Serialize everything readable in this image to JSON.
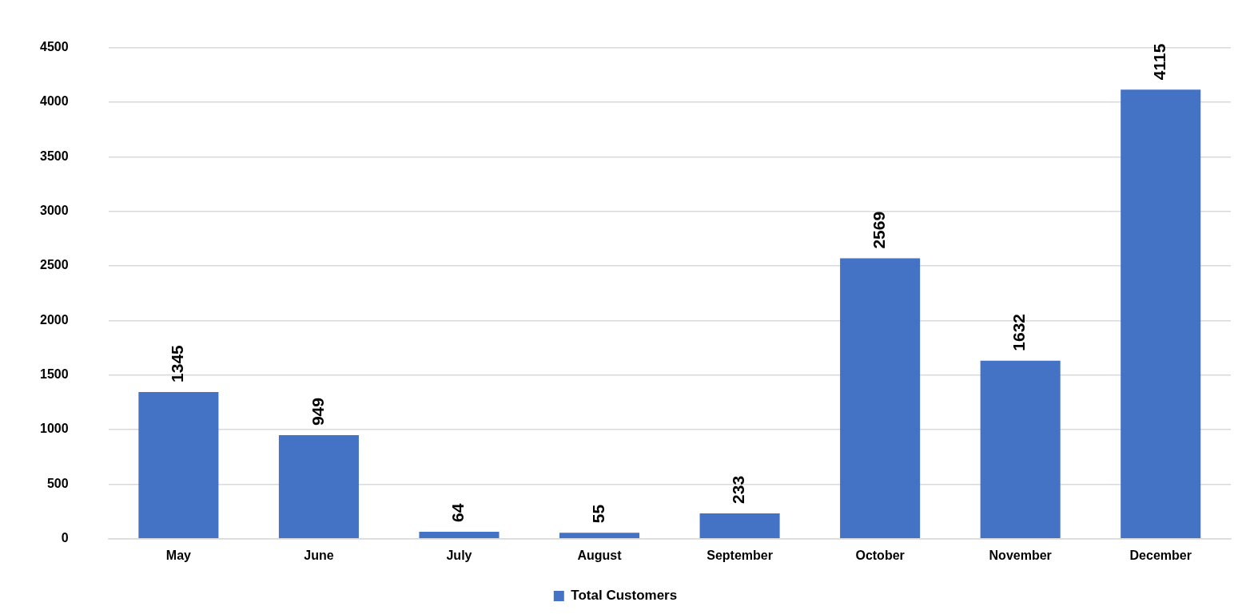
{
  "chart_data": {
    "type": "bar",
    "categories": [
      "May",
      "June",
      "July",
      "August",
      "September",
      "October",
      "November",
      "December"
    ],
    "series": [
      {
        "name": "Total Customers",
        "color": "#4472c4",
        "values": [
          1345,
          949,
          64,
          55,
          233,
          2569,
          1632,
          4115
        ]
      }
    ],
    "ylim": [
      0,
      4500
    ],
    "yticks": [
      0,
      500,
      1000,
      1500,
      2000,
      2500,
      3000,
      3500,
      4000,
      4500
    ],
    "grid": "y",
    "legend": "bottom",
    "data_labels": true
  }
}
